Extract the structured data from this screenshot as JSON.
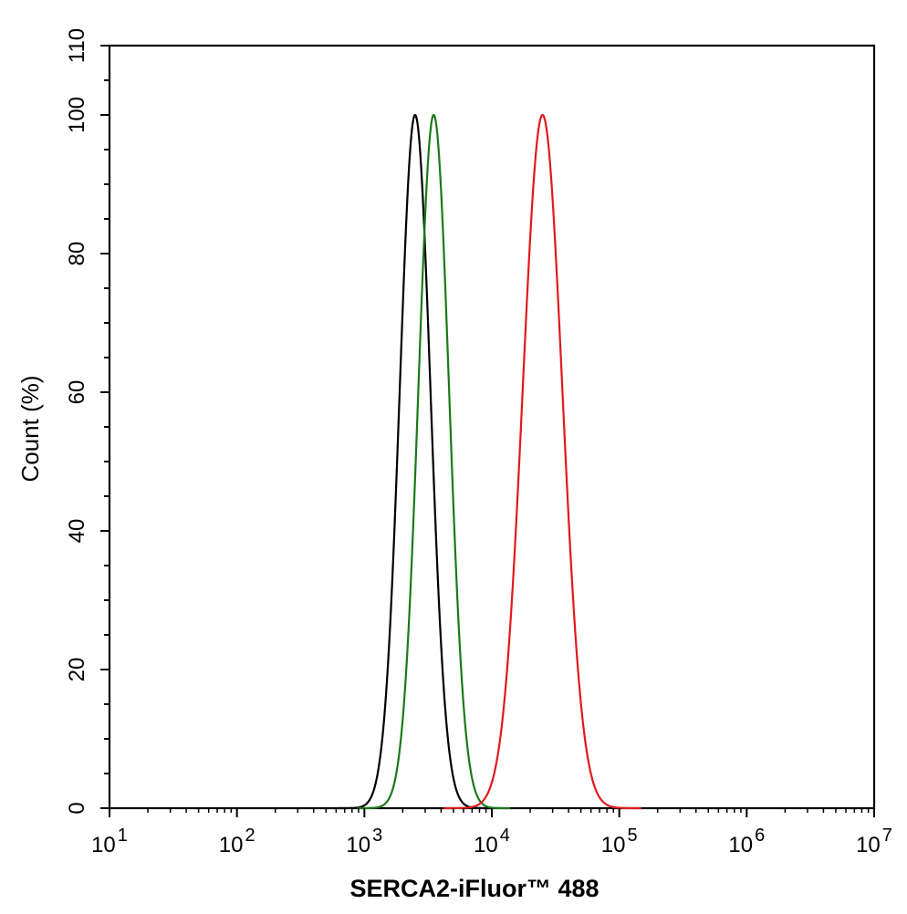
{
  "chart_data": {
    "type": "line",
    "title": "",
    "xlabel": "SERCA2-iFluor™ 488",
    "ylabel": "Count  (%)",
    "x_scale": "log",
    "xlim": [
      10,
      10000000
    ],
    "ylim": [
      0,
      110
    ],
    "x_ticks": [
      {
        "base": "10",
        "exp": "1",
        "value": 10
      },
      {
        "base": "10",
        "exp": "2",
        "value": 100
      },
      {
        "base": "10",
        "exp": "3",
        "value": 1000
      },
      {
        "base": "10",
        "exp": "4",
        "value": 10000
      },
      {
        "base": "10",
        "exp": "5",
        "value": 100000
      },
      {
        "base": "10",
        "exp": "6",
        "value": 1000000
      },
      {
        "base": "10",
        "exp": "7",
        "value": 10000000
      }
    ],
    "y_ticks": [
      0,
      20,
      40,
      60,
      80,
      100,
      110
    ],
    "grid": false,
    "legend": "none",
    "series": [
      {
        "color": "#000000",
        "peak_x": 2500,
        "peak_y": 100,
        "log_sd": 0.12,
        "x": [
          700,
          1000,
          1300,
          1600,
          1900,
          2200,
          2500,
          2800,
          3100,
          3400,
          3800,
          4300,
          5000,
          6000
        ],
        "y": [
          0,
          2,
          11,
          39,
          76,
          95,
          100,
          96,
          84,
          66,
          42,
          20,
          5,
          0
        ]
      },
      {
        "color": "#1a7a1a",
        "peak_x": 3500,
        "peak_y": 100,
        "log_sd": 0.12,
        "x": [
          900,
          1300,
          1700,
          2100,
          2500,
          2900,
          3200,
          3500,
          3900,
          4400,
          5000,
          5800,
          7000,
          8500
        ],
        "y": [
          0,
          2,
          10,
          33,
          62,
          86,
          96,
          100,
          95,
          80,
          54,
          26,
          5,
          0
        ]
      },
      {
        "color": "#e0191e",
        "peak_x": 25000,
        "peak_y": 100,
        "log_sd": 0.155,
        "x": [
          4500,
          7000,
          10000,
          13000,
          16000,
          19000,
          22000,
          25000,
          28000,
          32000,
          37000,
          44000,
          55000,
          80000,
          120000
        ],
        "y": [
          0,
          2,
          10,
          32,
          60,
          84,
          97,
          100,
          97,
          86,
          67,
          40,
          14,
          1,
          0
        ]
      }
    ]
  }
}
